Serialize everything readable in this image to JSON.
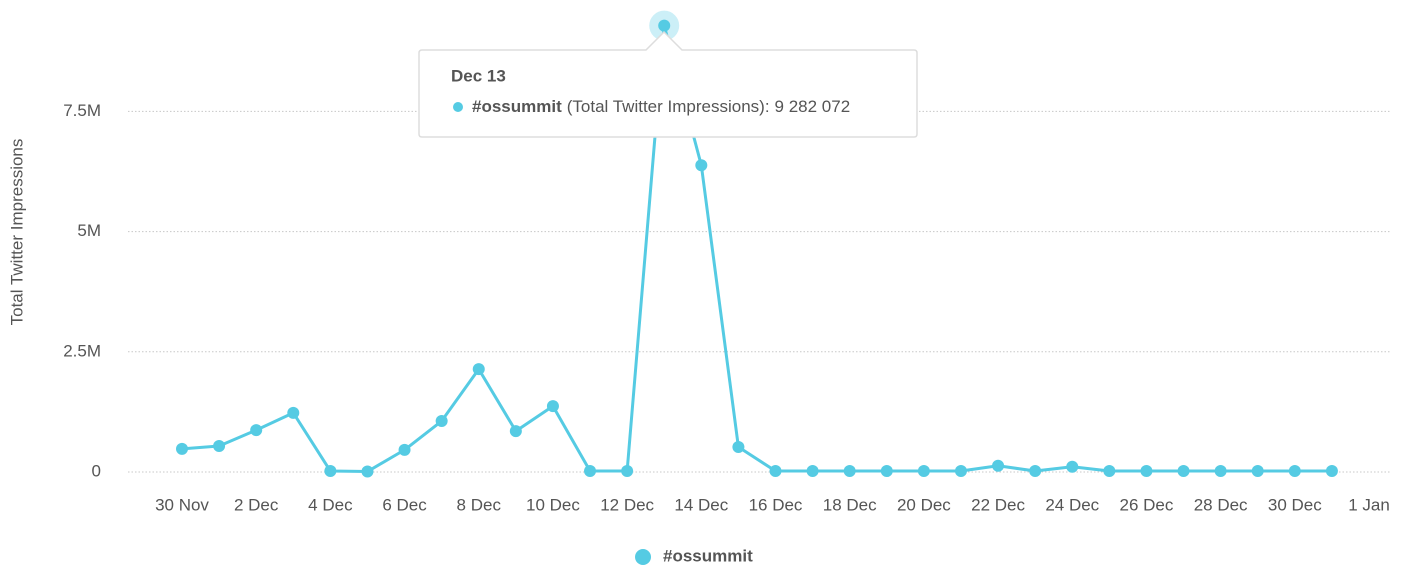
{
  "chart_data": {
    "type": "line",
    "y_label": "Total Twitter Impressions",
    "categories": [
      "30 Nov",
      null,
      "2 Dec",
      null,
      "4 Dec",
      null,
      "6 Dec",
      null,
      "8 Dec",
      null,
      "10 Dec",
      null,
      "12 Dec",
      null,
      "14 Dec",
      null,
      "16 Dec",
      null,
      "18 Dec",
      null,
      "20 Dec",
      null,
      "22 Dec",
      null,
      "24 Dec",
      null,
      "26 Dec",
      null,
      "28 Dec",
      null,
      "30 Dec",
      null,
      "1 Jan"
    ],
    "series": [
      {
        "name": "#ossummit",
        "color": "#55cbe3",
        "values": [
          480000,
          540000,
          870000,
          1230000,
          20000,
          10000,
          460000,
          1060000,
          2140000,
          850000,
          1370000,
          20000,
          20000,
          9282072,
          6380000,
          520000,
          20000,
          20000,
          20000,
          20000,
          20000,
          20000,
          130000,
          20000,
          110000,
          20000,
          20000,
          20000,
          20000,
          20000,
          20000,
          20000,
          null
        ],
        "value_labels": [
          null,
          null,
          null,
          null,
          null,
          null,
          null,
          null,
          null,
          null,
          null,
          null,
          null,
          "9 282 072",
          null,
          null,
          null,
          null,
          null,
          null,
          null,
          null,
          null,
          null,
          null,
          null,
          null,
          null,
          null,
          null,
          null,
          null,
          null
        ]
      }
    ],
    "ylim": [
      0,
      9400000
    ],
    "yticks": [
      0,
      {
        "value": 2500000,
        "label": "2.5M"
      },
      {
        "value": 5000000,
        "label": "5M"
      },
      {
        "value": 7500000,
        "label": "7.5M"
      }
    ],
    "grid": true,
    "legend": "bottom",
    "tooltip": {
      "title": "Dec 13",
      "index": 13,
      "text": "(Total Twitter Impressions):"
    }
  }
}
